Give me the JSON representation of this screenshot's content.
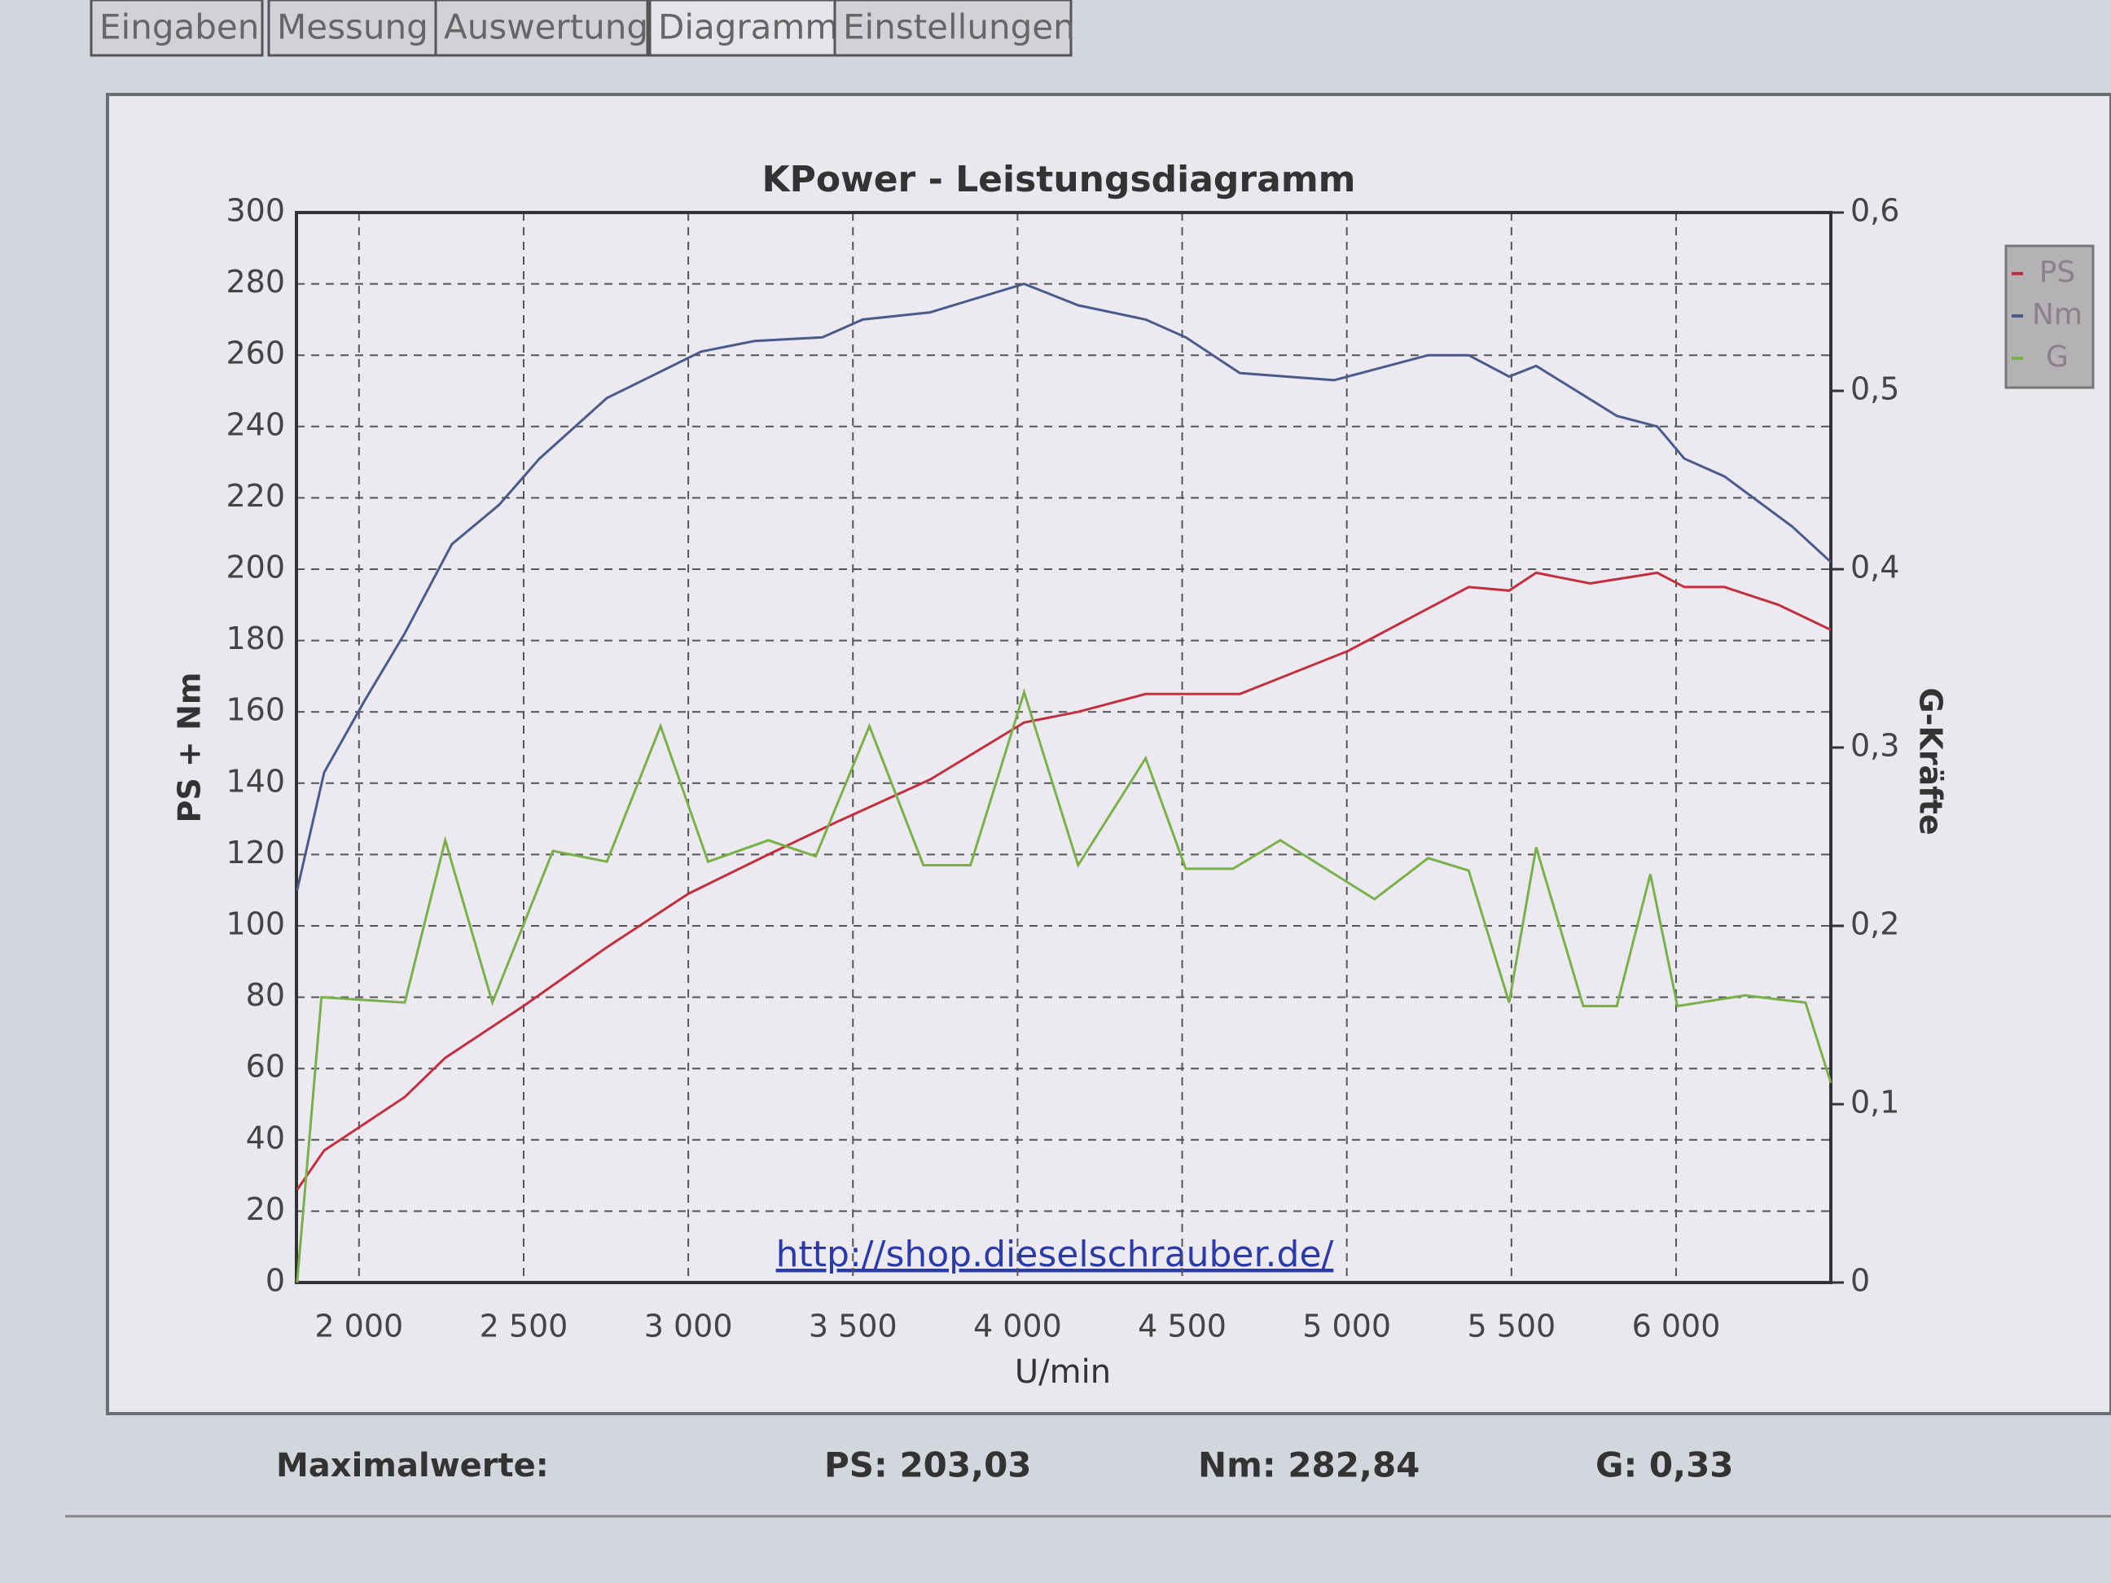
{
  "tabs": [
    "Eingaben",
    "Messung",
    "Auswertung",
    "Diagramm",
    "Einstellungen"
  ],
  "chart_data": {
    "type": "line",
    "title": "KPower - Leistungsdiagramm",
    "x_label": "U/min",
    "y_label": "PS + Nm",
    "y2_label": "G-Kräfte",
    "annotation": "http://shop.dieselschrauber.de/",
    "xlim": [
      1810,
      6470
    ],
    "xticks": [
      {
        "value": 2000,
        "label": "2 000"
      },
      {
        "value": 2500,
        "label": "2 500"
      },
      {
        "value": 3000,
        "label": "3 000"
      },
      {
        "value": 3500,
        "label": "3 500"
      },
      {
        "value": 4000,
        "label": "4 000"
      },
      {
        "value": 4500,
        "label": "4 500"
      },
      {
        "value": 5000,
        "label": "5 000"
      },
      {
        "value": 5500,
        "label": "5 500"
      },
      {
        "value": 6000,
        "label": "6 000"
      }
    ],
    "ylim": [
      0,
      300
    ],
    "yticks": [
      0,
      20,
      40,
      60,
      80,
      100,
      120,
      140,
      160,
      180,
      200,
      220,
      240,
      260,
      280,
      300
    ],
    "y2lim": [
      0,
      0.6
    ],
    "y2ticks": [
      0,
      {
        "value": 0.1,
        "label": "0,1"
      },
      {
        "value": 0.2,
        "label": "0,2"
      },
      {
        "value": 0.3,
        "label": "0,3"
      },
      {
        "value": 0.4,
        "label": "0,4"
      },
      {
        "value": 0.5,
        "label": "0,5"
      },
      {
        "value": 0.6,
        "label": "0,6"
      }
    ],
    "grid": true,
    "legend": "right",
    "series": [
      {
        "name": "PS",
        "color": "#c03040",
        "x": [
          1812,
          1894,
          2139,
          2262,
          2507,
          2753,
          3000,
          3243,
          3448,
          3734,
          4020,
          4184,
          4389,
          4675,
          5002,
          5370,
          5493,
          5575,
          5739,
          5943,
          6025,
          6147,
          6311,
          6470
        ],
        "values": [
          26,
          37,
          52,
          63,
          78,
          94,
          109,
          120,
          129,
          141,
          157,
          160,
          165,
          165,
          177,
          195,
          194,
          199,
          196,
          199,
          195,
          195,
          190,
          183
        ]
      },
      {
        "name": "Nm",
        "color": "#4a5a8a",
        "x": [
          1812,
          1894,
          2016,
          2139,
          2282,
          2425,
          2548,
          2753,
          3039,
          3202,
          3407,
          3530,
          3734,
          4020,
          4184,
          4389,
          4511,
          4675,
          4961,
          5247,
          5370,
          5493,
          5575,
          5820,
          5943,
          6025,
          6147,
          6352,
          6470
        ],
        "values": [
          110,
          143,
          163,
          182,
          207,
          218,
          231,
          248,
          261,
          264,
          265,
          270,
          272,
          280,
          274,
          270,
          265,
          255,
          253,
          260,
          260,
          254,
          257,
          243,
          240,
          231,
          226,
          212,
          202
        ]
      },
      {
        "name": "G",
        "color": "#7ab04a",
        "axis": "y2",
        "x": [
          1812,
          1886,
          2139,
          2262,
          2405,
          2589,
          2753,
          2916,
          3060,
          3243,
          3387,
          3550,
          3714,
          3857,
          4020,
          4184,
          4389,
          4511,
          4654,
          4798,
          5084,
          5247,
          5370,
          5493,
          5575,
          5718,
          5820,
          5922,
          6004,
          6209,
          6393,
          6470
        ],
        "values": [
          0,
          0.16,
          0.157,
          0.248,
          0.157,
          0.242,
          0.236,
          0.312,
          0.236,
          0.248,
          0.239,
          0.312,
          0.234,
          0.234,
          0.331,
          0.234,
          0.294,
          0.232,
          0.232,
          0.248,
          0.215,
          0.238,
          0.231,
          0.157,
          0.244,
          0.155,
          0.155,
          0.229,
          0.155,
          0.161,
          0.157,
          0.112
        ]
      }
    ]
  },
  "summary": {
    "label": "Maximalwerte:",
    "values": [
      "PS: 203,03",
      "Nm: 282,84",
      "G: 0,33"
    ]
  }
}
